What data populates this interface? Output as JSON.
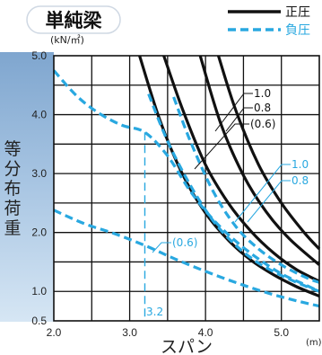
{
  "chart_data": {
    "type": "line",
    "title": "単純梁",
    "xlabel": "スパン",
    "x_unit": "(m)",
    "ylabel": "等分布荷重",
    "y_unit": "(kN/㎡)",
    "xlim": [
      2.0,
      5.5
    ],
    "ylim": [
      0.5,
      5.0
    ],
    "x_ticks": [
      "2.0",
      "3.0",
      "4.0",
      "5.0"
    ],
    "y_ticks": [
      "5.0",
      "4.0",
      "3.0",
      "2.0",
      "1.0",
      "0.5"
    ],
    "legend": [
      {
        "label": "正圧",
        "style": "solid",
        "color": "#111111"
      },
      {
        "label": "負圧",
        "style": "dashed",
        "color": "#29a8e0"
      }
    ],
    "grid": true,
    "series": [
      {
        "name": "1.0",
        "style": "solid",
        "x": [
          4.17,
          4.4,
          4.7,
          5.0,
          5.3,
          5.5
        ],
        "y": [
          5.0,
          4.07,
          3.15,
          2.5,
          2.0,
          1.72
        ]
      },
      {
        "name": "0.8",
        "style": "solid",
        "x": [
          3.93,
          4.2,
          4.5,
          4.8,
          5.1,
          5.5
        ],
        "y": [
          5.0,
          3.85,
          2.97,
          2.35,
          1.9,
          1.45
        ]
      },
      {
        "name": "(0.6)",
        "style": "solid",
        "x": [
          3.45,
          3.7,
          4.0,
          4.3,
          4.6,
          4.9,
          5.2,
          5.5
        ],
        "y": [
          5.0,
          4.08,
          3.15,
          2.5,
          2.02,
          1.65,
          1.37,
          1.17
        ]
      },
      {
        "name": "",
        "style": "solid",
        "x": [
          3.13,
          3.4,
          3.7,
          4.0,
          4.3,
          4.6,
          4.9,
          5.2,
          5.5
        ],
        "y": [
          5.0,
          3.9,
          2.98,
          2.33,
          1.87,
          1.53,
          1.28,
          1.08,
          0.92
        ]
      },
      {
        "name": "1.0",
        "style": "dashed",
        "x": [
          3.58,
          3.8,
          4.1,
          4.4,
          4.7,
          5.0,
          5.3,
          5.5
        ],
        "y": [
          4.3,
          3.55,
          2.7,
          2.1,
          1.72,
          1.45,
          1.25,
          1.15
        ]
      },
      {
        "name": "0.8",
        "style": "dashed",
        "x": [
          3.25,
          3.5,
          3.8,
          4.1,
          4.4,
          4.7,
          5.0,
          5.3,
          5.5
        ],
        "y": [
          4.35,
          3.55,
          2.8,
          2.2,
          1.78,
          1.48,
          1.27,
          1.1,
          1.0
        ]
      },
      {
        "name": "(0.6)",
        "style": "dashed",
        "x": [
          2.0,
          2.3,
          2.6,
          2.9,
          3.2,
          3.5,
          3.8,
          4.1,
          4.4,
          4.7,
          5.0,
          5.3,
          5.5
        ],
        "y": [
          4.75,
          4.32,
          4.02,
          3.82,
          3.7,
          3.3,
          2.7,
          2.22,
          1.85,
          1.55,
          1.3,
          1.12,
          1.0
        ]
      },
      {
        "name": "",
        "style": "dashed",
        "x": [
          2.0,
          2.4,
          2.8,
          3.2,
          3.6,
          4.0,
          4.4,
          4.8,
          5.2,
          5.5
        ],
        "y": [
          2.38,
          2.15,
          1.98,
          1.78,
          1.55,
          1.34,
          1.15,
          0.98,
          0.84,
          0.75
        ]
      }
    ],
    "annotations": [
      "1.0",
      "0.8",
      "(0.6)",
      "1.0",
      "0.8",
      "(0.6)",
      "3.2"
    ],
    "reference_line": {
      "x": 3.2,
      "label": "3.2"
    }
  }
}
